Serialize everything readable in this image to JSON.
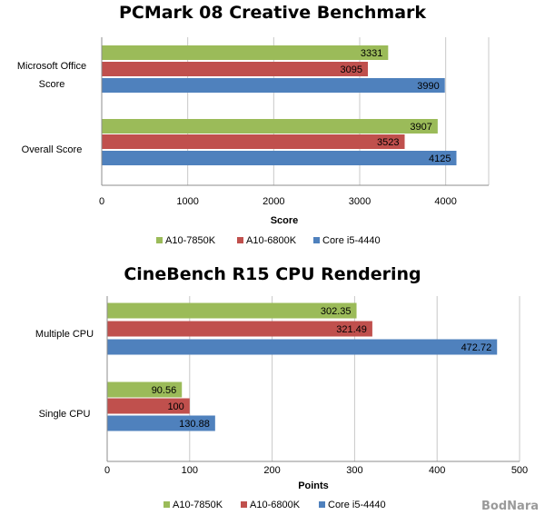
{
  "colors": {
    "green": "#9bbb59",
    "red": "#c0504d",
    "blue": "#4f81bd"
  },
  "watermark": "BodNara",
  "chart_data": [
    {
      "type": "bar",
      "orientation": "horizontal",
      "title": "PCMark 08 Creative Benchmark",
      "xlabel": "Score",
      "categories": [
        "Microsoft Office Score",
        "Overall Score"
      ],
      "category_lines": [
        [
          "Microsoft Office",
          "Score"
        ],
        [
          "Overall Score"
        ]
      ],
      "series": [
        {
          "name": "A10-7850K",
          "color": "green",
          "values": [
            3331,
            3907
          ],
          "labels": [
            "3331",
            "3907"
          ]
        },
        {
          "name": "A10-6800K",
          "color": "red",
          "values": [
            3095,
            3523
          ],
          "labels": [
            "3095",
            "3523"
          ]
        },
        {
          "name": "Core i5-4440",
          "color": "blue",
          "values": [
            3990,
            4125
          ],
          "labels": [
            "3990",
            "4125"
          ]
        }
      ],
      "xlim": [
        0,
        4500
      ],
      "ticks": [
        0,
        1000,
        2000,
        3000,
        4000
      ],
      "grid": true,
      "legend": "bottom"
    },
    {
      "type": "bar",
      "orientation": "horizontal",
      "title": "CineBench R15 CPU Rendering",
      "xlabel": "Points",
      "categories": [
        "Multiple CPU",
        "Single CPU"
      ],
      "category_lines": [
        [
          "Multiple CPU"
        ],
        [
          "Single CPU"
        ]
      ],
      "series": [
        {
          "name": "A10-7850K",
          "color": "green",
          "values": [
            302.35,
            90.56
          ],
          "labels": [
            "302.35",
            "90.56"
          ]
        },
        {
          "name": "A10-6800K",
          "color": "red",
          "values": [
            321.49,
            100
          ],
          "labels": [
            "321.49",
            "100"
          ]
        },
        {
          "name": "Core i5-4440",
          "color": "blue",
          "values": [
            472.72,
            130.88
          ],
          "labels": [
            "472.72",
            "130.88"
          ]
        }
      ],
      "xlim": [
        0,
        500
      ],
      "ticks": [
        0,
        100,
        200,
        300,
        400,
        500
      ],
      "grid": true,
      "legend": "bottom"
    }
  ]
}
